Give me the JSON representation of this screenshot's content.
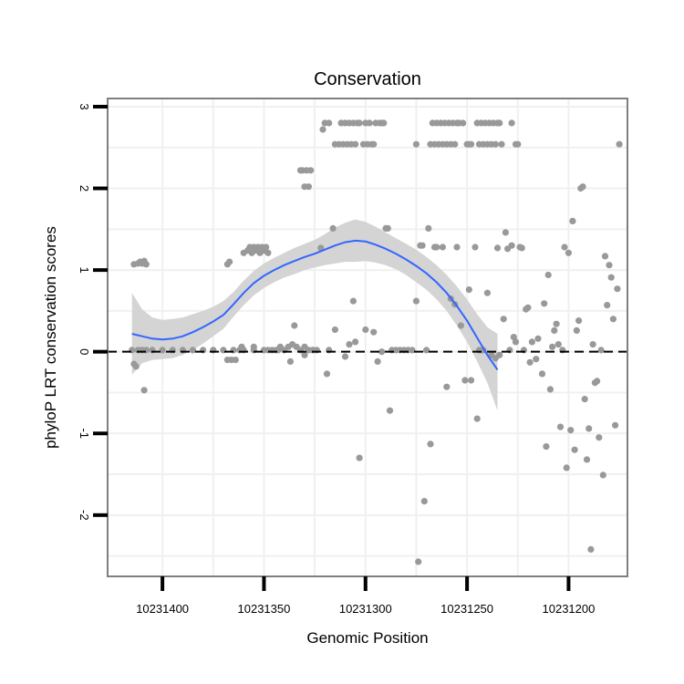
{
  "chart_data": {
    "type": "scatter",
    "title": "Conservation",
    "xlabel": "Genomic Position",
    "ylabel": "phyloP LRT conservation scores",
    "x_reversed": true,
    "xlim": [
      10231427,
      10231171
    ],
    "ylim": [
      -2.75,
      3.1
    ],
    "x_ticks": [
      10231400,
      10231350,
      10231300,
      10231250,
      10231200
    ],
    "x_tick_labels": [
      "10231400",
      "10231350",
      "10231300",
      "10231250",
      "10231200"
    ],
    "y_ticks": [
      -2,
      -1,
      0,
      1,
      2,
      3
    ],
    "y_tick_labels": [
      "-2",
      "-1",
      "0",
      "1",
      "2",
      "3"
    ],
    "reference_line": {
      "y": 0,
      "style": "dashed"
    },
    "colors": {
      "points": "#999999",
      "smooth": "#3366ff",
      "ribbon": "#d4d4d4",
      "grid": "#f0f0f0",
      "panel_border": "#7f7f7f",
      "refline": "#000000"
    },
    "points": [
      [
        10231414,
        1.07
      ],
      [
        10231412,
        1.08
      ],
      [
        10231411,
        1.1
      ],
      [
        10231410,
        1.08
      ],
      [
        10231409,
        1.11
      ],
      [
        10231408,
        1.07
      ],
      [
        10231409,
        -0.47
      ],
      [
        10231415,
        0.02
      ],
      [
        10231414,
        -0.15
      ],
      [
        10231413,
        -0.18
      ],
      [
        10231412,
        0.02
      ],
      [
        10231410,
        0.02
      ],
      [
        10231408,
        0.02
      ],
      [
        10231405,
        0.02
      ],
      [
        10231400,
        0.02
      ],
      [
        10231395,
        0.02
      ],
      [
        10231390,
        0.02
      ],
      [
        10231385,
        0.02
      ],
      [
        10231380,
        0.02
      ],
      [
        10231375,
        0.02
      ],
      [
        10231370,
        0.02
      ],
      [
        10231365,
        0.02
      ],
      [
        10231360,
        0.02
      ],
      [
        10231355,
        0.02
      ],
      [
        10231350,
        0.02
      ],
      [
        10231368,
        1.07
      ],
      [
        10231367,
        1.1
      ],
      [
        10231368,
        -0.1
      ],
      [
        10231366,
        -0.1
      ],
      [
        10231364,
        -0.1
      ],
      [
        10231362,
        0.02
      ],
      [
        10231361,
        0.06
      ],
      [
        10231360,
        1.21
      ],
      [
        10231358,
        1.24
      ],
      [
        10231357,
        1.28
      ],
      [
        10231356,
        1.21
      ],
      [
        10231355,
        1.28
      ],
      [
        10231354,
        1.24
      ],
      [
        10231353,
        1.28
      ],
      [
        10231352,
        1.21
      ],
      [
        10231351,
        1.28
      ],
      [
        10231350,
        1.24
      ],
      [
        10231349,
        1.28
      ],
      [
        10231348,
        1.21
      ],
      [
        10231355,
        0.06
      ],
      [
        10231348,
        0.02
      ],
      [
        10231346,
        0.02
      ],
      [
        10231344,
        0.02
      ],
      [
        10231342,
        0.06
      ],
      [
        10231340,
        0.02
      ],
      [
        10231338,
        0.06
      ],
      [
        10231336,
        0.09
      ],
      [
        10231334,
        0.06
      ],
      [
        10231332,
        0.02
      ],
      [
        10231330,
        0.06
      ],
      [
        10231328,
        0.02
      ],
      [
        10231326,
        0.02
      ],
      [
        10231324,
        0.02
      ],
      [
        10231343,
        0.02
      ],
      [
        10231337,
        -0.12
      ],
      [
        10231335,
        0.32
      ],
      [
        10231330,
        -0.04
      ],
      [
        10231326,
        0.02
      ],
      [
        10231332,
        2.22
      ],
      [
        10231331,
        2.22
      ],
      [
        10231329,
        2.22
      ],
      [
        10231330,
        2.02
      ],
      [
        10231328,
        2.02
      ],
      [
        10231327,
        2.22
      ],
      [
        10231321,
        2.72
      ],
      [
        10231320,
        2.8
      ],
      [
        10231318,
        2.8
      ],
      [
        10231322,
        1.27
      ],
      [
        10231319,
        -0.27
      ],
      [
        10231318,
        0.02
      ],
      [
        10231316,
        1.51
      ],
      [
        10231315,
        0.27
      ],
      [
        10231315,
        2.54
      ],
      [
        10231313,
        2.54
      ],
      [
        10231312,
        2.8
      ],
      [
        10231311,
        2.54
      ],
      [
        10231310,
        2.8
      ],
      [
        10231309,
        2.54
      ],
      [
        10231308,
        2.8
      ],
      [
        10231307,
        2.54
      ],
      [
        10231306,
        2.8
      ],
      [
        10231305,
        2.54
      ],
      [
        10231304,
        2.8
      ],
      [
        10231303,
        2.8
      ],
      [
        10231301,
        2.54
      ],
      [
        10231300,
        2.8
      ],
      [
        10231299,
        2.54
      ],
      [
        10231298,
        2.8
      ],
      [
        10231297,
        2.54
      ],
      [
        10231296,
        2.54
      ],
      [
        10231295,
        2.8
      ],
      [
        10231293,
        2.8
      ],
      [
        10231292,
        2.8
      ],
      [
        10231291,
        2.8
      ],
      [
        10231310,
        -0.06
      ],
      [
        10231308,
        0.09
      ],
      [
        10231306,
        0.62
      ],
      [
        10231305,
        0.12
      ],
      [
        10231303,
        -1.3
      ],
      [
        10231300,
        0.27
      ],
      [
        10231296,
        0.24
      ],
      [
        10231294,
        -0.12
      ],
      [
        10231292,
        0.0
      ],
      [
        10231290,
        1.51
      ],
      [
        10231289,
        1.51
      ],
      [
        10231288,
        -0.72
      ],
      [
        10231287,
        0.02
      ],
      [
        10231285,
        0.02
      ],
      [
        10231283,
        0.02
      ],
      [
        10231281,
        0.02
      ],
      [
        10231279,
        0.02
      ],
      [
        10231277,
        0.02
      ],
      [
        10231275,
        0.62
      ],
      [
        10231275,
        2.54
      ],
      [
        10231274,
        -2.57
      ],
      [
        10231273,
        1.3
      ],
      [
        10231272,
        1.3
      ],
      [
        10231271,
        -1.83
      ],
      [
        10231270,
        0.02
      ],
      [
        10231269,
        1.51
      ],
      [
        10231268,
        -1.13
      ],
      [
        10231266,
        1.28
      ],
      [
        10231265,
        1.28
      ],
      [
        10231268,
        2.54
      ],
      [
        10231267,
        2.8
      ],
      [
        10231266,
        2.54
      ],
      [
        10231265,
        2.8
      ],
      [
        10231264,
        2.54
      ],
      [
        10231263,
        2.8
      ],
      [
        10231262,
        2.54
      ],
      [
        10231261,
        2.8
      ],
      [
        10231260,
        2.54
      ],
      [
        10231259,
        2.8
      ],
      [
        10231258,
        2.54
      ],
      [
        10231257,
        2.8
      ],
      [
        10231256,
        2.54
      ],
      [
        10231255,
        2.8
      ],
      [
        10231254,
        2.8
      ],
      [
        10231252,
        2.8
      ],
      [
        10231250,
        2.54
      ],
      [
        10231249,
        2.54
      ],
      [
        10231248,
        2.54
      ],
      [
        10231262,
        1.28
      ],
      [
        10231260,
        -0.43
      ],
      [
        10231258,
        0.65
      ],
      [
        10231256,
        0.58
      ],
      [
        10231255,
        1.28
      ],
      [
        10231253,
        0.32
      ],
      [
        10231251,
        -0.35
      ],
      [
        10231249,
        0.76
      ],
      [
        10231248,
        -0.35
      ],
      [
        10231246,
        1.28
      ],
      [
        10231245,
        -0.82
      ],
      [
        10231244,
        0.02
      ],
      [
        10231243,
        0.02
      ],
      [
        10231242,
        0.02
      ],
      [
        10231245,
        2.8
      ],
      [
        10231244,
        2.54
      ],
      [
        10231243,
        2.8
      ],
      [
        10231242,
        2.54
      ],
      [
        10231241,
        2.8
      ],
      [
        10231240,
        2.54
      ],
      [
        10231239,
        2.8
      ],
      [
        10231238,
        2.54
      ],
      [
        10231237,
        2.8
      ],
      [
        10231236,
        2.54
      ],
      [
        10231235,
        2.8
      ],
      [
        10231234,
        2.8
      ],
      [
        10231233,
        2.54
      ],
      [
        10231228,
        2.8
      ],
      [
        10231226,
        2.54
      ],
      [
        10231225,
        2.54
      ],
      [
        10231240,
        0.72
      ],
      [
        10231238,
        -0.04
      ],
      [
        10231236,
        -0.08
      ],
      [
        10231235,
        1.27
      ],
      [
        10231234,
        -0.04
      ],
      [
        10231232,
        0.4
      ],
      [
        10231231,
        1.46
      ],
      [
        10231230,
        1.26
      ],
      [
        10231229,
        0.02
      ],
      [
        10231228,
        1.3
      ],
      [
        10231227,
        0.18
      ],
      [
        10231226,
        0.12
      ],
      [
        10231224,
        1.28
      ],
      [
        10231223,
        1.27
      ],
      [
        10231222,
        0.02
      ],
      [
        10231221,
        0.52
      ],
      [
        10231220,
        0.54
      ],
      [
        10231219,
        -0.13
      ],
      [
        10231218,
        0.12
      ],
      [
        10231216,
        -0.09
      ],
      [
        10231215,
        0.16
      ],
      [
        10231213,
        -0.27
      ],
      [
        10231212,
        0.59
      ],
      [
        10231211,
        -1.16
      ],
      [
        10231210,
        0.94
      ],
      [
        10231209,
        -0.46
      ],
      [
        10231208,
        0.06
      ],
      [
        10231207,
        0.26
      ],
      [
        10231206,
        0.34
      ],
      [
        10231205,
        0.09
      ],
      [
        10231204,
        -0.92
      ],
      [
        10231203,
        0.02
      ],
      [
        10231202,
        1.28
      ],
      [
        10231201,
        -1.42
      ],
      [
        10231200,
        1.21
      ],
      [
        10231199,
        -0.96
      ],
      [
        10231198,
        1.6
      ],
      [
        10231197,
        -1.2
      ],
      [
        10231196,
        0.26
      ],
      [
        10231195,
        0.38
      ],
      [
        10231194,
        2.0
      ],
      [
        10231193,
        2.02
      ],
      [
        10231192,
        -0.58
      ],
      [
        10231191,
        -1.32
      ],
      [
        10231190,
        -0.94
      ],
      [
        10231189,
        -2.42
      ],
      [
        10231188,
        0.09
      ],
      [
        10231187,
        -0.38
      ],
      [
        10231186,
        -0.36
      ],
      [
        10231185,
        -1.05
      ],
      [
        10231184,
        0.02
      ],
      [
        10231183,
        -1.51
      ],
      [
        10231182,
        1.17
      ],
      [
        10231181,
        0.57
      ],
      [
        10231180,
        1.06
      ],
      [
        10231179,
        0.91
      ],
      [
        10231178,
        0.4
      ],
      [
        10231177,
        -0.9
      ],
      [
        10231176,
        0.77
      ],
      [
        10231175,
        2.54
      ]
    ],
    "smooth": [
      [
        10231415,
        0.22
      ],
      [
        10231410,
        0.19
      ],
      [
        10231405,
        0.16
      ],
      [
        10231400,
        0.15
      ],
      [
        10231395,
        0.16
      ],
      [
        10231390,
        0.19
      ],
      [
        10231385,
        0.24
      ],
      [
        10231380,
        0.3
      ],
      [
        10231375,
        0.37
      ],
      [
        10231370,
        0.45
      ],
      [
        10231365,
        0.58
      ],
      [
        10231360,
        0.72
      ],
      [
        10231355,
        0.84
      ],
      [
        10231350,
        0.93
      ],
      [
        10231345,
        1.0
      ],
      [
        10231340,
        1.06
      ],
      [
        10231335,
        1.11
      ],
      [
        10231330,
        1.16
      ],
      [
        10231325,
        1.2
      ],
      [
        10231320,
        1.25
      ],
      [
        10231315,
        1.3
      ],
      [
        10231310,
        1.34
      ],
      [
        10231305,
        1.36
      ],
      [
        10231300,
        1.35
      ],
      [
        10231295,
        1.31
      ],
      [
        10231290,
        1.26
      ],
      [
        10231285,
        1.2
      ],
      [
        10231280,
        1.13
      ],
      [
        10231275,
        1.05
      ],
      [
        10231270,
        0.96
      ],
      [
        10231265,
        0.85
      ],
      [
        10231260,
        0.72
      ],
      [
        10231255,
        0.56
      ],
      [
        10231250,
        0.38
      ],
      [
        10231245,
        0.17
      ],
      [
        10231240,
        -0.04
      ],
      [
        10231235,
        -0.22
      ]
    ],
    "ribbon_upper": [
      [
        10231415,
        0.72
      ],
      [
        10231410,
        0.52
      ],
      [
        10231405,
        0.42
      ],
      [
        10231400,
        0.39
      ],
      [
        10231395,
        0.4
      ],
      [
        10231390,
        0.42
      ],
      [
        10231385,
        0.46
      ],
      [
        10231380,
        0.5
      ],
      [
        10231375,
        0.55
      ],
      [
        10231370,
        0.62
      ],
      [
        10231365,
        0.73
      ],
      [
        10231360,
        0.87
      ],
      [
        10231355,
        0.99
      ],
      [
        10231350,
        1.08
      ],
      [
        10231345,
        1.15
      ],
      [
        10231340,
        1.21
      ],
      [
        10231335,
        1.27
      ],
      [
        10231330,
        1.32
      ],
      [
        10231325,
        1.37
      ],
      [
        10231320,
        1.44
      ],
      [
        10231315,
        1.52
      ],
      [
        10231310,
        1.58
      ],
      [
        10231305,
        1.62
      ],
      [
        10231300,
        1.59
      ],
      [
        10231295,
        1.53
      ],
      [
        10231290,
        1.46
      ],
      [
        10231285,
        1.39
      ],
      [
        10231280,
        1.32
      ],
      [
        10231275,
        1.25
      ],
      [
        10231270,
        1.16
      ],
      [
        10231265,
        1.06
      ],
      [
        10231260,
        0.94
      ],
      [
        10231255,
        0.8
      ],
      [
        10231250,
        0.64
      ],
      [
        10231245,
        0.46
      ],
      [
        10231240,
        0.3
      ],
      [
        10231235,
        0.22
      ]
    ],
    "ribbon_lower": [
      [
        10231415,
        -0.28
      ],
      [
        10231410,
        -0.14
      ],
      [
        10231405,
        -0.1
      ],
      [
        10231400,
        -0.09
      ],
      [
        10231395,
        -0.08
      ],
      [
        10231390,
        -0.04
      ],
      [
        10231385,
        0.02
      ],
      [
        10231380,
        0.1
      ],
      [
        10231375,
        0.19
      ],
      [
        10231370,
        0.28
      ],
      [
        10231365,
        0.43
      ],
      [
        10231360,
        0.57
      ],
      [
        10231355,
        0.69
      ],
      [
        10231350,
        0.78
      ],
      [
        10231345,
        0.85
      ],
      [
        10231340,
        0.91
      ],
      [
        10231335,
        0.95
      ],
      [
        10231330,
        1.0
      ],
      [
        10231325,
        1.03
      ],
      [
        10231320,
        1.06
      ],
      [
        10231315,
        1.08
      ],
      [
        10231310,
        1.1
      ],
      [
        10231305,
        1.1
      ],
      [
        10231300,
        1.11
      ],
      [
        10231295,
        1.09
      ],
      [
        10231290,
        1.06
      ],
      [
        10231285,
        1.01
      ],
      [
        10231280,
        0.94
      ],
      [
        10231275,
        0.85
      ],
      [
        10231270,
        0.76
      ],
      [
        10231265,
        0.64
      ],
      [
        10231260,
        0.5
      ],
      [
        10231255,
        0.32
      ],
      [
        10231250,
        0.12
      ],
      [
        10231245,
        -0.12
      ],
      [
        10231240,
        -0.38
      ],
      [
        10231235,
        -0.72
      ]
    ]
  }
}
